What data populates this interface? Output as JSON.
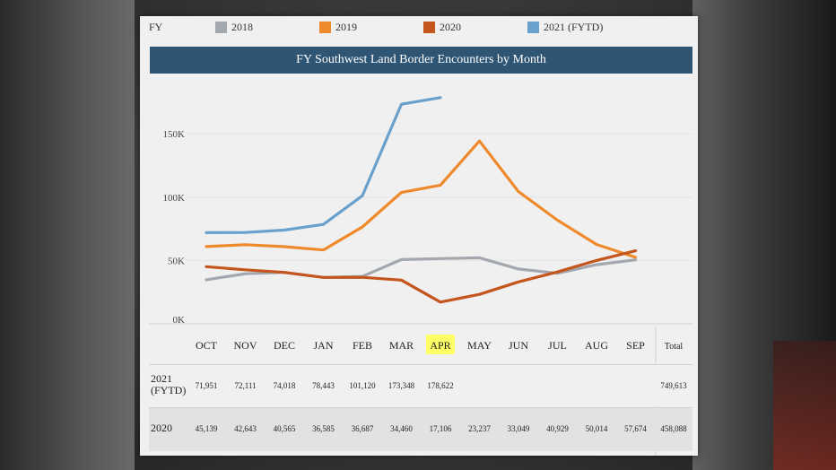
{
  "legend": {
    "title": "FY",
    "items": [
      {
        "label": "2018",
        "color": "#a3a7ae"
      },
      {
        "label": "2019",
        "color": "#ef8a2c"
      },
      {
        "label": "2020",
        "color": "#c3551d"
      },
      {
        "label": "2021 (FYTD)",
        "color": "#6aa1cc"
      }
    ]
  },
  "chart_data": {
    "type": "line",
    "title": "FY Southwest Land Border Encounters by Month",
    "categories": [
      "OCT",
      "NOV",
      "DEC",
      "JAN",
      "FEB",
      "MAR",
      "APR",
      "MAY",
      "JUN",
      "JUL",
      "AUG",
      "SEP"
    ],
    "highlight_category": "APR",
    "highlight_color": "#ffff66",
    "ylim": [
      0,
      190000
    ],
    "y_ticks": [
      {
        "value": 0,
        "label": "0K"
      },
      {
        "value": 50000,
        "label": "50K"
      },
      {
        "value": 100000,
        "label": "100K"
      },
      {
        "value": 150000,
        "label": "150K"
      }
    ],
    "grid": true,
    "series": [
      {
        "name": "2018",
        "color": "#a3a7ae",
        "values": [
          34800,
          39500,
          40600,
          36600,
          37400,
          50700,
          51500,
          52100,
          43300,
          39900,
          46700,
          50500
        ]
      },
      {
        "name": "2019",
        "color": "#ef8a2c",
        "values": [
          61000,
          62500,
          60900,
          58300,
          76500,
          103700,
          109500,
          144300,
          104400,
          81800,
          62700,
          52500
        ]
      },
      {
        "name": "2020",
        "color": "#c3551d",
        "values": [
          45139,
          42643,
          40565,
          36585,
          36687,
          34460,
          17106,
          23237,
          33049,
          40929,
          50014,
          57674
        ]
      },
      {
        "name": "2021 (FYTD)",
        "color": "#6aa1cc",
        "values": [
          71951,
          72111,
          74018,
          78443,
          101120,
          173348,
          178622,
          null,
          null,
          null,
          null,
          null
        ]
      }
    ]
  },
  "table": {
    "total_header": "Total",
    "rows": [
      {
        "label_lines": [
          "2021",
          "(FYTD)"
        ],
        "cells": [
          "71,951",
          "72,111",
          "74,018",
          "78,443",
          "101,120",
          "173,348",
          "178,622",
          "",
          "",
          "",
          "",
          ""
        ],
        "total": "749,613"
      },
      {
        "label_lines": [
          "2020"
        ],
        "cells": [
          "45,139",
          "42,643",
          "40,565",
          "36,585",
          "36,687",
          "34,460",
          "17,106",
          "23,237",
          "33,049",
          "40,929",
          "50,014",
          "57,674"
        ],
        "total": "458,088"
      }
    ]
  }
}
